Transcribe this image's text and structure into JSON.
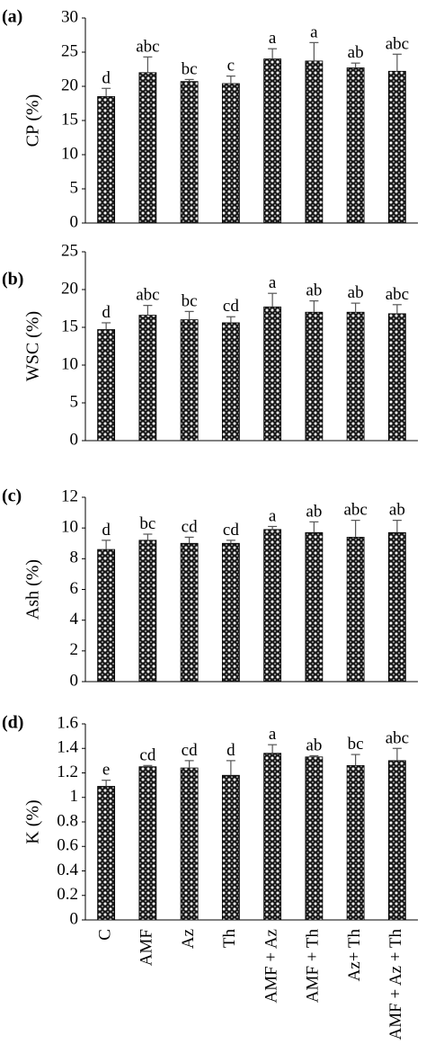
{
  "chart_data": [
    {
      "type": "bar",
      "panel_label": "(a)",
      "ylabel": "CP (%)",
      "ylim": [
        0,
        30
      ],
      "yticks": [
        0,
        5,
        10,
        15,
        20,
        25,
        30
      ],
      "categories": [
        "C",
        "AMF",
        "Az",
        "Th",
        "AMF + Az",
        "AMF + Th",
        "Az+ Th",
        "AMF + Az + Th"
      ],
      "values": [
        18.5,
        22.0,
        20.7,
        20.4,
        24.0,
        23.7,
        22.7,
        22.2
      ],
      "errors": [
        1.2,
        2.3,
        0.3,
        1.1,
        1.5,
        2.7,
        0.7,
        2.5
      ],
      "letters": [
        "d",
        "abc",
        "bc",
        "c",
        "a",
        "a",
        "ab",
        "abc"
      ]
    },
    {
      "type": "bar",
      "panel_label": "(b)",
      "ylabel": "WSC (%)",
      "ylim": [
        0,
        25
      ],
      "yticks": [
        0,
        5,
        10,
        15,
        20,
        25
      ],
      "categories": [
        "C",
        "AMF",
        "Az",
        "Th",
        "AMF + Az",
        "AMF + Th",
        "Az+ Th",
        "AMF + Az + Th"
      ],
      "values": [
        14.7,
        16.6,
        16.0,
        15.6,
        17.7,
        17.0,
        17.0,
        16.8
      ],
      "errors": [
        0.9,
        1.3,
        1.1,
        0.8,
        1.8,
        1.5,
        1.2,
        1.2
      ],
      "letters": [
        "d",
        "abc",
        "bc",
        "cd",
        "a",
        "ab",
        "ab",
        "abc"
      ]
    },
    {
      "type": "bar",
      "panel_label": "(c)",
      "ylabel": "Ash (%)",
      "ylim": [
        0,
        12
      ],
      "yticks": [
        0,
        2,
        4,
        6,
        8,
        10,
        12
      ],
      "categories": [
        "C",
        "AMF",
        "Az",
        "Th",
        "AMF + Az",
        "AMF + Th",
        "Az+ Th",
        "AMF + Az + Th"
      ],
      "values": [
        8.6,
        9.2,
        9.0,
        9.0,
        9.9,
        9.7,
        9.4,
        9.7
      ],
      "errors": [
        0.6,
        0.4,
        0.4,
        0.2,
        0.2,
        0.7,
        1.1,
        0.8
      ],
      "letters": [
        "d",
        "bc",
        "cd",
        "cd",
        "a",
        "ab",
        "abc",
        "ab"
      ]
    },
    {
      "type": "bar",
      "panel_label": "(d)",
      "ylabel": "K (%)",
      "ylim": [
        0,
        1.6
      ],
      "yticks": [
        "0",
        "0.2",
        "0.4",
        "0.6",
        "0.8",
        "1",
        "1.2",
        "1.4",
        "1.6"
      ],
      "categories": [
        "C",
        "AMF",
        "Az",
        "Th",
        "AMF + Az",
        "AMF + Th",
        "Az+ Th",
        "AMF + Az + Th"
      ],
      "values": [
        1.09,
        1.25,
        1.24,
        1.18,
        1.36,
        1.33,
        1.26,
        1.3
      ],
      "errors": [
        0.05,
        0.01,
        0.06,
        0.12,
        0.07,
        0.01,
        0.09,
        0.1
      ],
      "letters": [
        "e",
        "cd",
        "cd",
        "d",
        "a",
        "ab",
        "bc",
        "abc"
      ]
    }
  ]
}
